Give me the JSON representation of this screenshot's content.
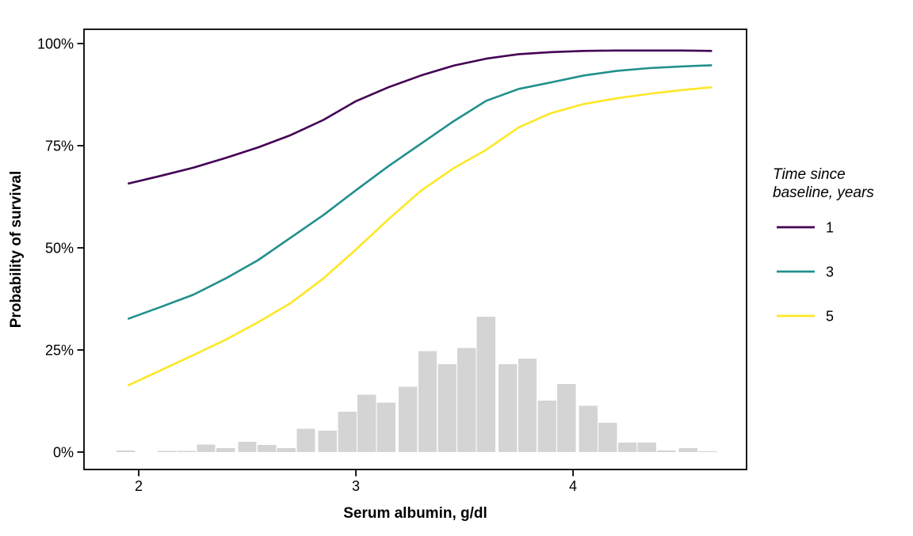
{
  "chart_data": {
    "type": "line",
    "title": "",
    "xlabel": "Serum albumin, g/dl",
    "ylabel": "Probability of survival",
    "xlim": [
      1.748,
      4.799
    ],
    "ylim": [
      -4.26,
      103.49
    ],
    "grid": "off",
    "panel_border": true,
    "legend_position": "right",
    "x_ticks": [
      {
        "value": 2,
        "label": "2"
      },
      {
        "value": 3,
        "label": "3"
      },
      {
        "value": 4,
        "label": "4"
      }
    ],
    "y_ticks": [
      {
        "value": 0,
        "label": "0%"
      },
      {
        "value": 25,
        "label": "25%"
      },
      {
        "value": 50,
        "label": "50%"
      },
      {
        "value": 75,
        "label": "75%"
      },
      {
        "value": 100,
        "label": "100%"
      }
    ],
    "legend": {
      "title_lines": [
        "Time since",
        "baseline, years"
      ],
      "entries": [
        {
          "label": "1",
          "color": "#440154"
        },
        {
          "label": "3",
          "color": "#21908C"
        },
        {
          "label": "5",
          "color": "#FDE725"
        }
      ]
    },
    "x": [
      1.95,
      2.1,
      2.25,
      2.4,
      2.55,
      2.7,
      2.85,
      3.0,
      3.15,
      3.3,
      3.45,
      3.6,
      3.75,
      3.9,
      4.05,
      4.2,
      4.35,
      4.5,
      4.64
    ],
    "series": [
      {
        "name": "1",
        "color": "#440154",
        "values": [
          65.7,
          67.6,
          69.6,
          72.0,
          74.6,
          77.6,
          81.3,
          85.9,
          89.3,
          92.2,
          94.6,
          96.3,
          97.4,
          97.9,
          98.2,
          98.3,
          98.3,
          98.3,
          98.2
        ]
      },
      {
        "name": "3",
        "color": "#21908C",
        "values": [
          32.6,
          35.5,
          38.5,
          42.5,
          47.0,
          52.5,
          58.0,
          64.1,
          70.0,
          75.5,
          81.0,
          86.0,
          88.9,
          90.5,
          92.2,
          93.3,
          94.0,
          94.4,
          94.7
        ]
      },
      {
        "name": "5",
        "color": "#FDE725",
        "values": [
          16.3,
          20.0,
          23.7,
          27.5,
          31.8,
          36.5,
          42.5,
          49.6,
          57.0,
          64.0,
          69.5,
          74.0,
          79.5,
          83.0,
          85.2,
          86.6,
          87.7,
          88.6,
          89.3
        ]
      }
    ],
    "histogram": {
      "fill": "#D4D4D4",
      "bin_width": 0.091,
      "centers": [
        1.94,
        2.13,
        2.22,
        2.31,
        2.4,
        2.5,
        2.59,
        2.68,
        2.77,
        2.87,
        2.96,
        3.05,
        3.14,
        3.24,
        3.33,
        3.42,
        3.51,
        3.6,
        3.7,
        3.79,
        3.88,
        3.97,
        4.07,
        4.16,
        4.25,
        4.34,
        4.43,
        4.53,
        4.62
      ],
      "heights_pct": [
        0.4,
        0.3,
        0.3,
        1.8,
        1.0,
        2.5,
        1.7,
        1.0,
        5.7,
        5.2,
        9.9,
        14.1,
        12.1,
        16.0,
        24.7,
        21.5,
        25.5,
        33.1,
        21.5,
        22.9,
        12.6,
        16.7,
        11.3,
        7.2,
        2.3,
        2.3,
        0.4,
        1.0,
        0.2
      ]
    },
    "colors": {
      "axis_text": "#000000",
      "axis_line": "#000000",
      "background": "#FFFFFF"
    }
  }
}
